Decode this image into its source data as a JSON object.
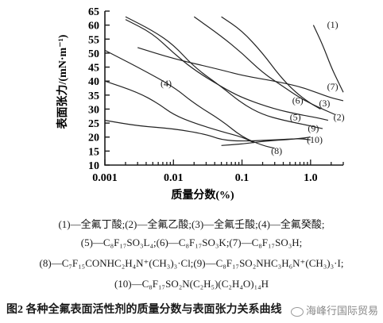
{
  "chart_data": {
    "type": "line",
    "title": "",
    "xlabel": "质量分数(%)",
    "ylabel": "表面张力/(mN·m⁻¹)",
    "xscale": "log",
    "xlim": [
      0.001,
      3.0
    ],
    "ylim": [
      10,
      65
    ],
    "xticks": [
      {
        "v": 0.001,
        "label": "0.001"
      },
      {
        "v": 0.01,
        "label": "0.01"
      },
      {
        "v": 0.1,
        "label": "0.1"
      },
      {
        "v": 1.0,
        "label": "1.0"
      }
    ],
    "yticks": [
      10,
      15,
      20,
      25,
      30,
      35,
      40,
      45,
      50,
      55,
      60,
      65
    ],
    "grid": false,
    "series": [
      {
        "name": "(1)",
        "label_at": [
          2.1,
          59
        ],
        "points": [
          [
            1.1,
            60
          ],
          [
            1.5,
            53
          ],
          [
            2.0,
            45
          ],
          [
            2.5,
            40
          ],
          [
            3.0,
            36
          ]
        ]
      },
      {
        "name": "(2)",
        "label_at": [
          2.6,
          26
        ],
        "points": [
          [
            0.02,
            63
          ],
          [
            0.05,
            56
          ],
          [
            0.1,
            50
          ],
          [
            0.2,
            43
          ],
          [
            0.4,
            38
          ],
          [
            0.7,
            34
          ],
          [
            1.0,
            32
          ],
          [
            1.5,
            30
          ],
          [
            2.3,
            28
          ]
        ]
      },
      {
        "name": "(3)",
        "label_at": [
          1.6,
          31
        ],
        "points": [
          [
            0.05,
            63
          ],
          [
            0.1,
            58
          ],
          [
            0.2,
            50
          ],
          [
            0.35,
            42
          ],
          [
            0.6,
            36
          ],
          [
            1.0,
            32
          ],
          [
            1.4,
            30
          ]
        ]
      },
      {
        "name": "(4)",
        "label_at": [
          0.0078,
          38
        ],
        "points": [
          [
            0.001,
            40
          ],
          [
            0.003,
            36
          ],
          [
            0.006,
            32
          ],
          [
            0.01,
            28
          ],
          [
            0.02,
            25
          ],
          [
            0.05,
            22
          ],
          [
            0.1,
            20
          ],
          [
            0.15,
            18
          ]
        ]
      },
      {
        "name": "(5)",
        "label_at": [
          0.6,
          26
        ],
        "points": [
          [
            0.002,
            63
          ],
          [
            0.005,
            58
          ],
          [
            0.01,
            53
          ],
          [
            0.02,
            45
          ],
          [
            0.05,
            38
          ],
          [
            0.1,
            32
          ],
          [
            0.2,
            28
          ],
          [
            0.4,
            26
          ],
          [
            1.0,
            24
          ],
          [
            1.5,
            23
          ]
        ]
      },
      {
        "name": "(6)",
        "label_at": [
          0.65,
          32
        ],
        "points": [
          [
            0.002,
            62
          ],
          [
            0.005,
            57
          ],
          [
            0.01,
            50
          ],
          [
            0.02,
            44
          ],
          [
            0.05,
            38
          ],
          [
            0.1,
            34
          ],
          [
            0.3,
            30
          ],
          [
            0.7,
            28
          ],
          [
            1.2,
            27
          ],
          [
            1.8,
            26
          ]
        ]
      },
      {
        "name": "(7)",
        "label_at": [
          2.1,
          37
        ],
        "points": [
          [
            0.003,
            52
          ],
          [
            0.01,
            48
          ],
          [
            0.05,
            44
          ],
          [
            0.1,
            42
          ],
          [
            0.3,
            40
          ],
          [
            0.7,
            38
          ],
          [
            1.2,
            36
          ],
          [
            2.0,
            34
          ],
          [
            3.0,
            33
          ]
        ]
      },
      {
        "name": "(8)",
        "label_at": [
          0.32,
          14
        ],
        "points": [
          [
            0.001,
            51
          ],
          [
            0.003,
            45
          ],
          [
            0.01,
            38
          ],
          [
            0.02,
            32
          ],
          [
            0.05,
            26
          ],
          [
            0.1,
            20
          ],
          [
            0.2,
            17
          ],
          [
            0.3,
            16
          ]
        ]
      },
      {
        "name": "(9)",
        "label_at": [
          1.1,
          22
        ],
        "points": [
          [
            0.001,
            26
          ],
          [
            0.003,
            24
          ],
          [
            0.01,
            23
          ],
          [
            0.03,
            21
          ],
          [
            0.05,
            19
          ],
          [
            0.1,
            18.5
          ],
          [
            0.3,
            19
          ],
          [
            0.7,
            19.5
          ],
          [
            1.0,
            19
          ]
        ]
      },
      {
        "name": "(10)",
        "label_at": [
          1.15,
          18
        ],
        "points": [
          [
            0.05,
            17
          ],
          [
            0.1,
            17.5
          ],
          [
            0.2,
            18.5
          ],
          [
            0.4,
            19
          ],
          [
            0.7,
            19.5
          ],
          [
            1.0,
            20
          ]
        ]
      }
    ]
  },
  "legend_lines": [
    "(1)—全氟丁酸;(2)—全氟乙酸;(3)—全氟壬酸;(4)—全氟癸酸;",
    "(5)—C₈F₁₇SO₃L₄;(6)—C₈F₁₇SO₃K;(7)—C₈F₁₇SO₃H;",
    "(8)—C₇F₁₅CONHC₂H₄N⁺(CH₃)₃·Cl;(9)—C₈F₁₇SO₂NHC₃H₆N⁺(CH₃)₃·I;",
    "(10)—C₈F₁₇SO₂N(C₂H₅)(C₂H₄O)₁₄H"
  ],
  "caption": "图2   各种全氟表面活性剂的质量分数与表面张力关系曲线",
  "watermark": "海峰行国际贸易"
}
